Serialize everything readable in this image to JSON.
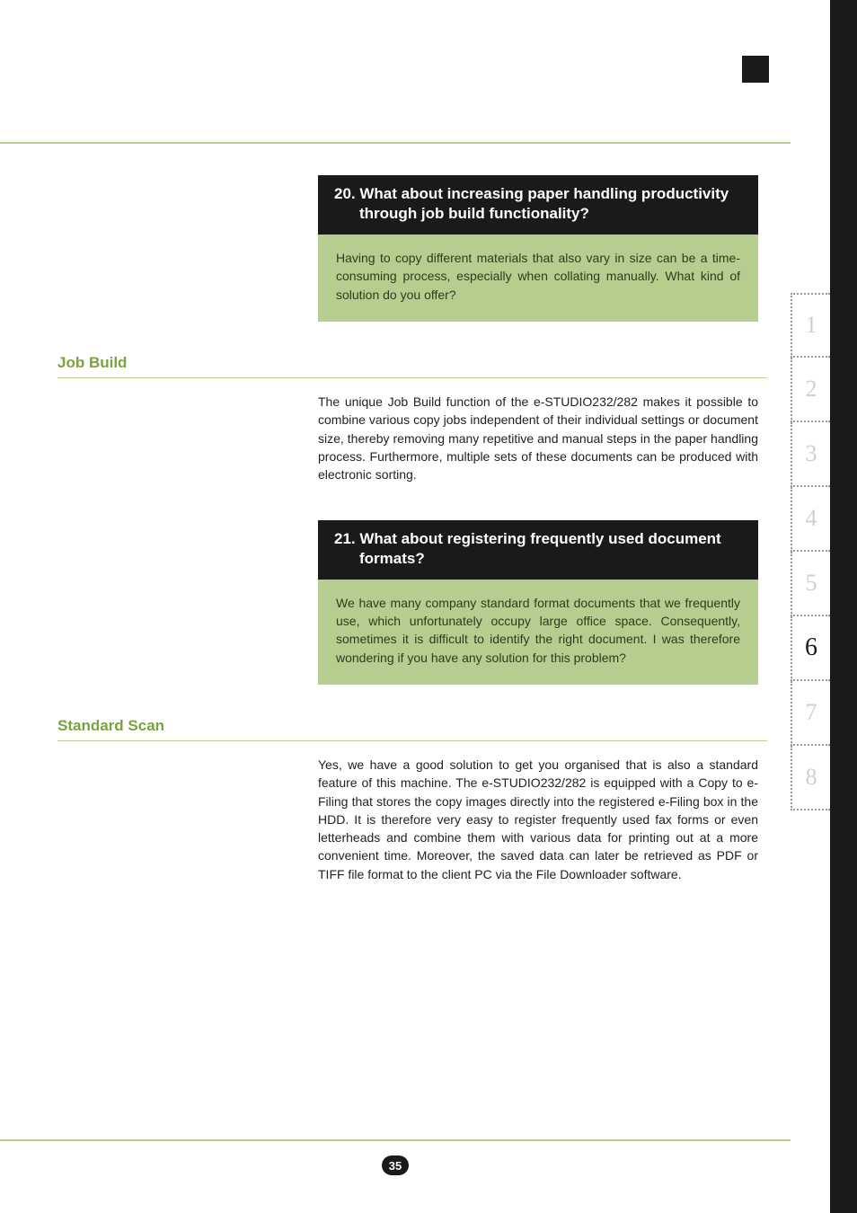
{
  "corner_color": "#1a1a1a",
  "accent_color": "#b5cd8f",
  "label_color": "#7ba23f",
  "q20": {
    "title_line1": "20. What about increasing paper handling productivity",
    "title_line2": "through job build functionality?",
    "body": "Having to copy different materials that also vary in size can be a time-consuming process, especially when collating manually. What kind of solution do you offer?"
  },
  "label1": "Job Build",
  "answer1": "The unique Job Build function of the e-STUDIO232/282 makes it possible to combine various copy jobs independent of their individual settings or document size, thereby removing many repetitive and manual steps in the paper handling process. Furthermore, multiple sets of these documents can be produced with electronic sorting.",
  "q21": {
    "title_line1": "21. What about registering frequently used document",
    "title_line2": "formats?",
    "body": "We have many company standard format documents that we frequently use, which unfortunately occupy large office space. Consequently, sometimes it is difficult to identify the right document. I was therefore wondering if you have any solution for this problem?"
  },
  "label2": "Standard Scan",
  "answer2": "Yes, we have a good solution to get you organised that is also a standard feature of this machine. The e-STUDIO232/282 is equipped with a Copy to e-Filing that stores the copy images directly into the registered e-Filing box in the HDD. It is therefore very easy to register frequently used fax forms or even letterheads and combine them with various data for printing out at a more convenient time. Moreover, the saved data can later be retrieved as PDF or TIFF file format to the client PC via the File Downloader software.",
  "tabs": [
    "1",
    "2",
    "3",
    "4",
    "5",
    "6",
    "7",
    "8"
  ],
  "active_tab_index": 5,
  "page_number": "35"
}
